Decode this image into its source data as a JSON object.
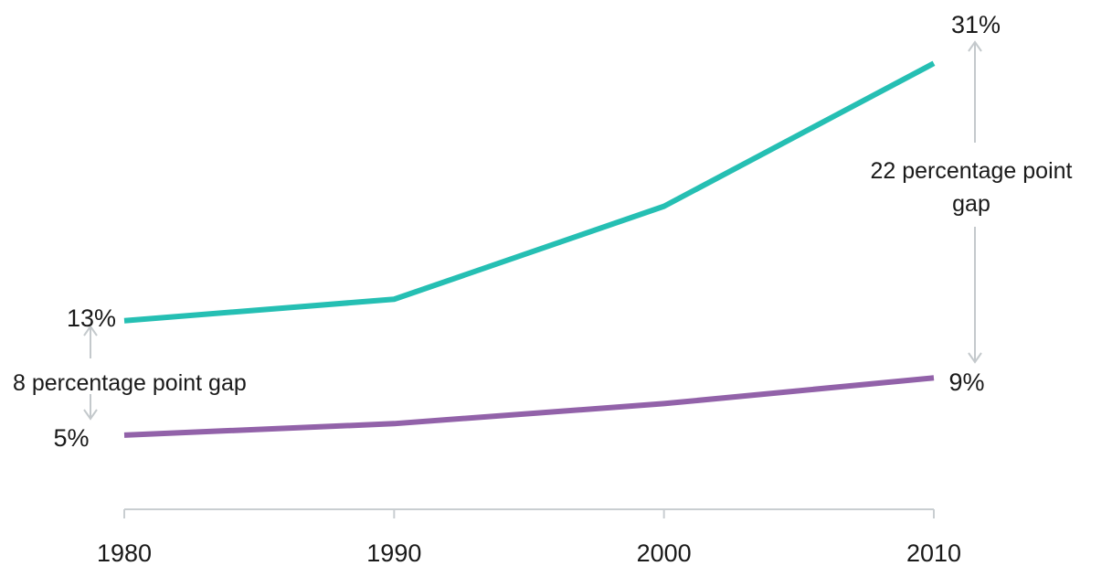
{
  "chart_data": {
    "type": "line",
    "x": [
      1980,
      1990,
      2000,
      2010
    ],
    "x_tick_labels": [
      "1980",
      "1990",
      "2000",
      "2010"
    ],
    "series": [
      {
        "values": [
          13,
          14.5,
          21,
          31
        ],
        "color": "#25bfb3"
      },
      {
        "values": [
          5,
          5.8,
          7.2,
          9
        ],
        "color": "#9262a9"
      }
    ],
    "ylim": [
      0,
      33
    ],
    "grid": false,
    "legend": "none",
    "point_labels": {
      "top_start": "13%",
      "top_end": "31%",
      "bottom_start": "5%",
      "bottom_end": "9%"
    },
    "annotations": {
      "start_gap": "8 percentage point gap",
      "end_gap_line1": "22 percentage point",
      "end_gap_line2": "gap"
    }
  }
}
